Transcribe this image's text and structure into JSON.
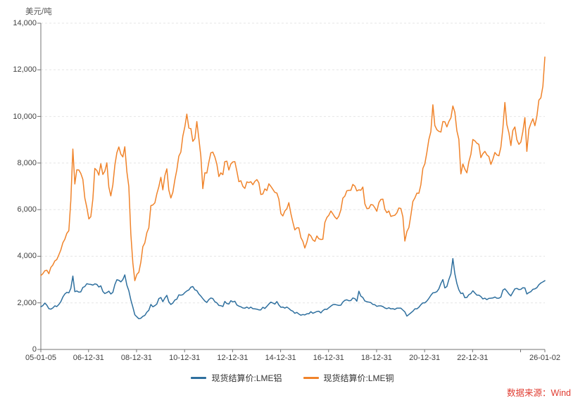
{
  "page": {
    "unit_label": "美元/吨",
    "source_label": "数据来源：Wind",
    "source_color": "#e03c31"
  },
  "chart_data": {
    "type": "line",
    "title": "",
    "ylabel": "美元/吨",
    "ylim": [
      0,
      14000
    ],
    "grid": "horizontal-dashed",
    "legend_position": "bottom-center",
    "axis_color": "#737373",
    "gridline_color": "#e5e5e5",
    "x_range": [
      "05-01-05",
      "26-01-02"
    ],
    "x_spacing": "even-monthly",
    "y_ticks": [
      {
        "value": 0,
        "label": "0"
      },
      {
        "value": 2000,
        "label": "2,000"
      },
      {
        "value": 4000,
        "label": "4,000"
      },
      {
        "value": 6000,
        "label": "6,000"
      },
      {
        "value": 8000,
        "label": "8,000"
      },
      {
        "value": 10000,
        "label": "10,000"
      },
      {
        "value": 12000,
        "label": "12,000"
      },
      {
        "value": 14000,
        "label": "14,000"
      }
    ],
    "x_ticks": [
      {
        "label": "05-01-05",
        "pos": 0
      },
      {
        "label": "06-12-31",
        "pos": 0.0947
      },
      {
        "label": "08-12-31",
        "pos": 0.1899
      },
      {
        "label": "10-12-31",
        "pos": 0.2852
      },
      {
        "label": "12-12-31",
        "pos": 0.3804
      },
      {
        "label": "14-12-31",
        "pos": 0.4757
      },
      {
        "label": "16-12-31",
        "pos": 0.5709
      },
      {
        "label": "18-12-31",
        "pos": 0.6661
      },
      {
        "label": "20-12-31",
        "pos": 0.7614
      },
      {
        "label": "22-12-31",
        "pos": 0.8566
      },
      {
        "label": "",
        "pos": 0.9518
      },
      {
        "label": "26-01-02",
        "pos": 1
      }
    ],
    "series": [
      {
        "name": "现货结算价:LME铝",
        "color": "#2e6f9e",
        "values": [
          1830,
          1880,
          1990,
          1900,
          1750,
          1730,
          1780,
          1870,
          1840,
          1930,
          2050,
          2250,
          2380,
          2450,
          2430,
          2620,
          3150,
          2480,
          2510,
          2460,
          2470,
          2660,
          2700,
          2820,
          2800,
          2790,
          2760,
          2815,
          2790,
          2680,
          2730,
          2490,
          2400,
          2440,
          2500,
          2380,
          2450,
          2780,
          2990,
          2970,
          2900,
          3000,
          3200,
          2760,
          2520,
          2120,
          1820,
          1490,
          1400,
          1320,
          1340,
          1420,
          1460,
          1600,
          1680,
          1930,
          1830,
          1880,
          1950,
          2180,
          2230,
          2050,
          2210,
          2320,
          2040,
          1930,
          1990,
          2120,
          2160,
          2340,
          2330,
          2350,
          2440,
          2510,
          2555,
          2670,
          2700,
          2560,
          2525,
          2380,
          2290,
          2180,
          2080,
          2020,
          2140,
          2210,
          2185,
          2050,
          2000,
          1890,
          1880,
          1840,
          2060,
          1970,
          1950,
          2090,
          2040,
          2070,
          1910,
          1860,
          1830,
          1780,
          1770,
          1820,
          1760,
          1815,
          1750,
          1740,
          1730,
          1700,
          1700,
          1810,
          1760,
          1850,
          1950,
          2030,
          1990,
          1945,
          2055,
          1910,
          1810,
          1820,
          1775,
          1820,
          1760,
          1680,
          1640,
          1550,
          1590,
          1520,
          1470,
          1500,
          1480,
          1530,
          1530,
          1620,
          1550,
          1590,
          1630,
          1640,
          1570,
          1670,
          1730,
          1720,
          1790,
          1860,
          1920,
          1930,
          1910,
          1890,
          1900,
          2030,
          2110,
          2130,
          2090,
          2100,
          2210,
          2180,
          2070,
          2500,
          2290,
          2230,
          2080,
          2050,
          2030,
          2010,
          1930,
          1920,
          1850,
          1870,
          1870,
          1840,
          1780,
          1750,
          1790,
          1740,
          1750,
          1720,
          1770,
          1770,
          1770,
          1690,
          1610,
          1430,
          1500,
          1570,
          1640,
          1740,
          1740,
          1810,
          1920,
          2000,
          2000,
          2080,
          2190,
          2320,
          2430,
          2440,
          2480,
          2600,
          2830,
          3000,
          2640,
          2700,
          3000,
          3240,
          3900,
          3250,
          2830,
          2560,
          2400,
          2420,
          2220,
          2230,
          2350,
          2400,
          2520,
          2420,
          2330,
          2330,
          2270,
          2170,
          2200,
          2140,
          2190,
          2200,
          2210,
          2250,
          2200,
          2200,
          2250,
          2540,
          2600,
          2500,
          2380,
          2300,
          2450,
          2600,
          2620,
          2570,
          2580,
          2650,
          2640,
          2380,
          2440,
          2480,
          2580,
          2600,
          2650,
          2780,
          2850,
          2900,
          2950
        ]
      },
      {
        "name": "现货结算价:LME铜",
        "color": "#f0832a",
        "values": [
          3170,
          3250,
          3380,
          3400,
          3250,
          3520,
          3620,
          3800,
          3860,
          4060,
          4270,
          4580,
          4730,
          4980,
          5100,
          6390,
          8600,
          7100,
          7710,
          7700,
          7550,
          7300,
          6500,
          6100,
          5600,
          5700,
          6450,
          7770,
          7680,
          7480,
          7970,
          7510,
          7650,
          8010,
          6970,
          6590,
          7060,
          7890,
          8440,
          8690,
          8380,
          8260,
          8700,
          7630,
          6990,
          4930,
          3720,
          2950,
          3220,
          3310,
          3750,
          4410,
          4570,
          5010,
          5220,
          6170,
          6200,
          6290,
          6680,
          6980,
          7390,
          6850,
          7460,
          7750,
          6840,
          6500,
          6740,
          7280,
          7710,
          8290,
          8470,
          9150,
          9560,
          10100,
          9500,
          9480,
          8930,
          9050,
          9780,
          9040,
          8300,
          6900,
          7580,
          7570,
          8040,
          8440,
          8470,
          8260,
          7960,
          7420,
          7580,
          7500,
          8060,
          8080,
          7700,
          7960,
          8050,
          8060,
          7660,
          7200,
          7240,
          7000,
          6910,
          7190,
          7160,
          7200,
          7070,
          7210,
          7290,
          7150,
          6650,
          6670,
          6890,
          6820,
          7110,
          7000,
          6870,
          6740,
          6710,
          6450,
          5830,
          5730,
          5940,
          6040,
          6300,
          5830,
          5460,
          5130,
          5220,
          5220,
          4800,
          4640,
          4350,
          4600,
          4950,
          4870,
          4700,
          4640,
          4870,
          4750,
          4720,
          4730,
          5450,
          5660,
          5760,
          5940,
          5820,
          5680,
          5600,
          5720,
          5990,
          6490,
          6580,
          6810,
          6830,
          6830,
          7080,
          7010,
          6800,
          6850,
          6830,
          6970,
          6250,
          6050,
          6050,
          6220,
          6200,
          6080,
          5930,
          6300,
          6440,
          6450,
          6020,
          5870,
          5940,
          5710,
          5740,
          5760,
          5860,
          6070,
          6050,
          5690,
          4650,
          5060,
          5230,
          5750,
          6350,
          6500,
          6710,
          6700,
          7060,
          7770,
          7970,
          8460,
          9010,
          9340,
          10500,
          9610,
          9430,
          9360,
          9330,
          9780,
          9770,
          9550,
          9780,
          9940,
          10450,
          10180,
          9380,
          9020,
          7530,
          7960,
          7740,
          7580,
          8050,
          8370,
          9010,
          8950,
          8850,
          8800,
          8230,
          8400,
          8500,
          8350,
          8280,
          7940,
          8160,
          8450,
          8350,
          8310,
          8680,
          9480,
          10600,
          9650,
          9300,
          8750,
          9400,
          9550,
          9000,
          8800,
          8900,
          9350,
          9950,
          8500,
          9450,
          9700,
          9900,
          9600,
          10000,
          10700,
          10800,
          11300,
          12550
        ]
      }
    ]
  }
}
